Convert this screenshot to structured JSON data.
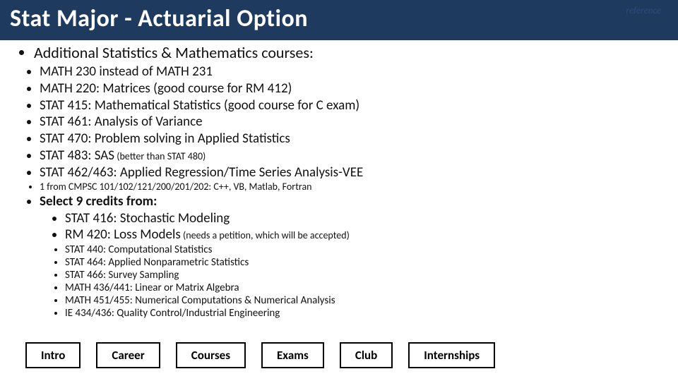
{
  "colors": {
    "title_bg": "#1f3a5f",
    "title_fg": "#ffffff",
    "ref_color": "#2a4a7a"
  },
  "title": "Stat Major - Actuarial Option",
  "reference_label": "reference",
  "headline": "Additional Statistics & Mathematics courses:",
  "main_items": [
    "MATH 230 instead of MATH 231",
    "MATH 220: Matrices (good course for RM 412)",
    "STAT 415: Mathematical Statistics (good course for C exam)",
    "STAT 461: Analysis of Variance",
    "STAT 470: Problem solving in Applied Statistics"
  ],
  "sas_item_prefix": "STAT 483: SAS",
  "sas_item_note": " (better than STAT 480)",
  "after_sas": [
    "STAT 462/463: Applied Regression/Time Series Analysis-VEE"
  ],
  "cmpsc_item": "1 from CMPSC 101/102/121/200/201/202: C++, VB, Matlab, Fortran",
  "select_label": "Select 9 credits from:",
  "select_sub_plain": "STAT 416: Stochastic Modeling",
  "select_sub_rm_prefix": "RM 420:  Loss Models",
  "select_sub_rm_note": " (needs a petition, which will be accepted)",
  "select_tail": [
    "STAT 440: Computational Statistics",
    "STAT 464: Applied Nonparametric Statistics",
    "STAT 466:  Survey Sampling",
    "MATH 436/441: Linear or Matrix Algebra",
    "MATH 451/455: Numerical Computations & Numerical Analysis",
    "IE 434/436: Quality Control/Industrial Engineering"
  ],
  "nav": [
    "Intro",
    "Career",
    "Courses",
    "Exams",
    "Club",
    "Internships"
  ]
}
